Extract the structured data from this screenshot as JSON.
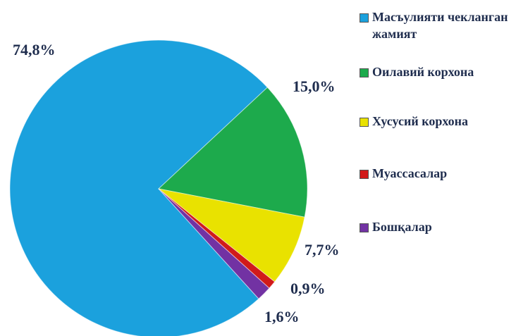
{
  "chart_data": {
    "type": "pie",
    "categories": [
      "Масъулияти чекланган жамият",
      "Оилавий корхона",
      "Хусусий корхона",
      "Муассасалар",
      "Бошқалар"
    ],
    "values": [
      74.8,
      15.0,
      7.7,
      0.9,
      1.6
    ],
    "value_labels": [
      "74,8%",
      "15,0%",
      "7,7%",
      "0,9%",
      "1,6%"
    ],
    "colors": [
      "#1ba1dd",
      "#1daa4c",
      "#e9e200",
      "#d11a1a",
      "#7232a3"
    ]
  }
}
